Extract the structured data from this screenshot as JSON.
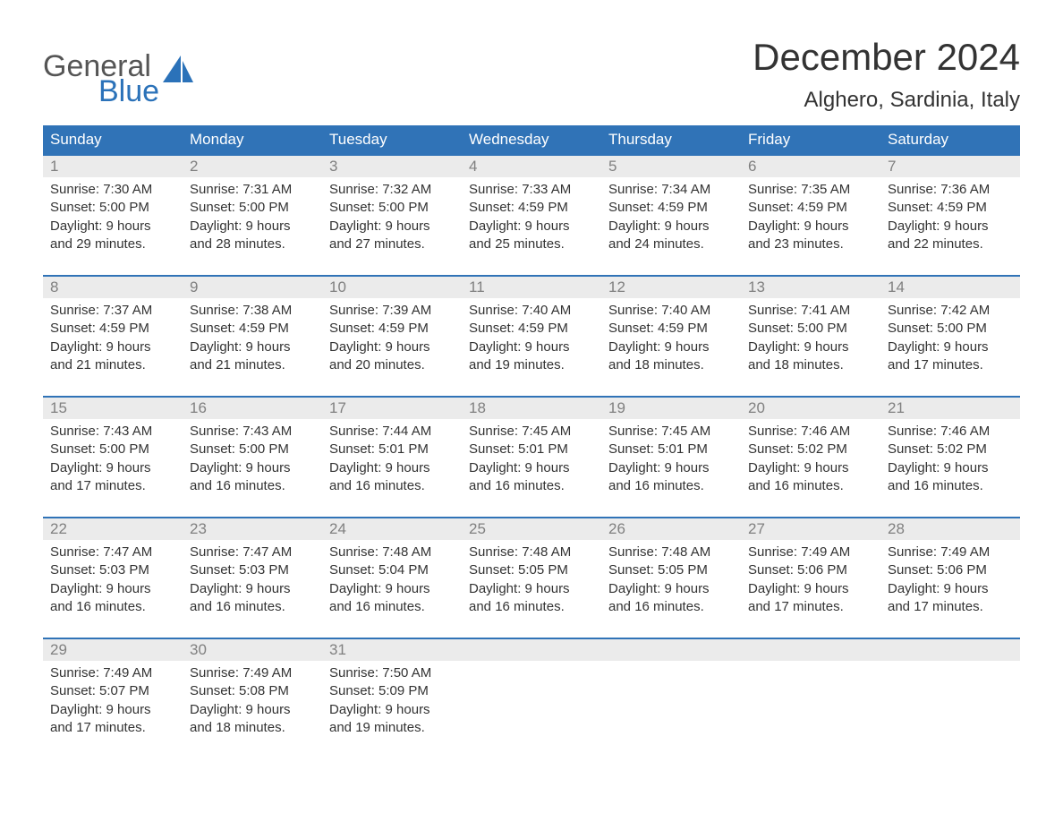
{
  "brand": {
    "text_top": "General",
    "text_bottom": "Blue",
    "top_color": "#555555",
    "bottom_color": "#2b72b9",
    "shape_color": "#2b72b9"
  },
  "title": {
    "month": "December 2024",
    "location": "Alghero, Sardinia, Italy"
  },
  "colors": {
    "header_bg": "#3073b7",
    "header_text": "#ffffff",
    "daynum_bg": "#ebebeb",
    "daynum_text": "#808080",
    "body_text": "#333333",
    "week_border": "#3073b7",
    "page_bg": "#ffffff"
  },
  "typography": {
    "month_fontsize": 42,
    "location_fontsize": 24,
    "header_fontsize": 17,
    "daynum_fontsize": 17,
    "cell_fontsize": 15
  },
  "day_headers": [
    "Sunday",
    "Monday",
    "Tuesday",
    "Wednesday",
    "Thursday",
    "Friday",
    "Saturday"
  ],
  "weeks": [
    [
      {
        "num": "1",
        "sunrise": "Sunrise: 7:30 AM",
        "sunset": "Sunset: 5:00 PM",
        "dl1": "Daylight: 9 hours",
        "dl2": "and 29 minutes."
      },
      {
        "num": "2",
        "sunrise": "Sunrise: 7:31 AM",
        "sunset": "Sunset: 5:00 PM",
        "dl1": "Daylight: 9 hours",
        "dl2": "and 28 minutes."
      },
      {
        "num": "3",
        "sunrise": "Sunrise: 7:32 AM",
        "sunset": "Sunset: 5:00 PM",
        "dl1": "Daylight: 9 hours",
        "dl2": "and 27 minutes."
      },
      {
        "num": "4",
        "sunrise": "Sunrise: 7:33 AM",
        "sunset": "Sunset: 4:59 PM",
        "dl1": "Daylight: 9 hours",
        "dl2": "and 25 minutes."
      },
      {
        "num": "5",
        "sunrise": "Sunrise: 7:34 AM",
        "sunset": "Sunset: 4:59 PM",
        "dl1": "Daylight: 9 hours",
        "dl2": "and 24 minutes."
      },
      {
        "num": "6",
        "sunrise": "Sunrise: 7:35 AM",
        "sunset": "Sunset: 4:59 PM",
        "dl1": "Daylight: 9 hours",
        "dl2": "and 23 minutes."
      },
      {
        "num": "7",
        "sunrise": "Sunrise: 7:36 AM",
        "sunset": "Sunset: 4:59 PM",
        "dl1": "Daylight: 9 hours",
        "dl2": "and 22 minutes."
      }
    ],
    [
      {
        "num": "8",
        "sunrise": "Sunrise: 7:37 AM",
        "sunset": "Sunset: 4:59 PM",
        "dl1": "Daylight: 9 hours",
        "dl2": "and 21 minutes."
      },
      {
        "num": "9",
        "sunrise": "Sunrise: 7:38 AM",
        "sunset": "Sunset: 4:59 PM",
        "dl1": "Daylight: 9 hours",
        "dl2": "and 21 minutes."
      },
      {
        "num": "10",
        "sunrise": "Sunrise: 7:39 AM",
        "sunset": "Sunset: 4:59 PM",
        "dl1": "Daylight: 9 hours",
        "dl2": "and 20 minutes."
      },
      {
        "num": "11",
        "sunrise": "Sunrise: 7:40 AM",
        "sunset": "Sunset: 4:59 PM",
        "dl1": "Daylight: 9 hours",
        "dl2": "and 19 minutes."
      },
      {
        "num": "12",
        "sunrise": "Sunrise: 7:40 AM",
        "sunset": "Sunset: 4:59 PM",
        "dl1": "Daylight: 9 hours",
        "dl2": "and 18 minutes."
      },
      {
        "num": "13",
        "sunrise": "Sunrise: 7:41 AM",
        "sunset": "Sunset: 5:00 PM",
        "dl1": "Daylight: 9 hours",
        "dl2": "and 18 minutes."
      },
      {
        "num": "14",
        "sunrise": "Sunrise: 7:42 AM",
        "sunset": "Sunset: 5:00 PM",
        "dl1": "Daylight: 9 hours",
        "dl2": "and 17 minutes."
      }
    ],
    [
      {
        "num": "15",
        "sunrise": "Sunrise: 7:43 AM",
        "sunset": "Sunset: 5:00 PM",
        "dl1": "Daylight: 9 hours",
        "dl2": "and 17 minutes."
      },
      {
        "num": "16",
        "sunrise": "Sunrise: 7:43 AM",
        "sunset": "Sunset: 5:00 PM",
        "dl1": "Daylight: 9 hours",
        "dl2": "and 16 minutes."
      },
      {
        "num": "17",
        "sunrise": "Sunrise: 7:44 AM",
        "sunset": "Sunset: 5:01 PM",
        "dl1": "Daylight: 9 hours",
        "dl2": "and 16 minutes."
      },
      {
        "num": "18",
        "sunrise": "Sunrise: 7:45 AM",
        "sunset": "Sunset: 5:01 PM",
        "dl1": "Daylight: 9 hours",
        "dl2": "and 16 minutes."
      },
      {
        "num": "19",
        "sunrise": "Sunrise: 7:45 AM",
        "sunset": "Sunset: 5:01 PM",
        "dl1": "Daylight: 9 hours",
        "dl2": "and 16 minutes."
      },
      {
        "num": "20",
        "sunrise": "Sunrise: 7:46 AM",
        "sunset": "Sunset: 5:02 PM",
        "dl1": "Daylight: 9 hours",
        "dl2": "and 16 minutes."
      },
      {
        "num": "21",
        "sunrise": "Sunrise: 7:46 AM",
        "sunset": "Sunset: 5:02 PM",
        "dl1": "Daylight: 9 hours",
        "dl2": "and 16 minutes."
      }
    ],
    [
      {
        "num": "22",
        "sunrise": "Sunrise: 7:47 AM",
        "sunset": "Sunset: 5:03 PM",
        "dl1": "Daylight: 9 hours",
        "dl2": "and 16 minutes."
      },
      {
        "num": "23",
        "sunrise": "Sunrise: 7:47 AM",
        "sunset": "Sunset: 5:03 PM",
        "dl1": "Daylight: 9 hours",
        "dl2": "and 16 minutes."
      },
      {
        "num": "24",
        "sunrise": "Sunrise: 7:48 AM",
        "sunset": "Sunset: 5:04 PM",
        "dl1": "Daylight: 9 hours",
        "dl2": "and 16 minutes."
      },
      {
        "num": "25",
        "sunrise": "Sunrise: 7:48 AM",
        "sunset": "Sunset: 5:05 PM",
        "dl1": "Daylight: 9 hours",
        "dl2": "and 16 minutes."
      },
      {
        "num": "26",
        "sunrise": "Sunrise: 7:48 AM",
        "sunset": "Sunset: 5:05 PM",
        "dl1": "Daylight: 9 hours",
        "dl2": "and 16 minutes."
      },
      {
        "num": "27",
        "sunrise": "Sunrise: 7:49 AM",
        "sunset": "Sunset: 5:06 PM",
        "dl1": "Daylight: 9 hours",
        "dl2": "and 17 minutes."
      },
      {
        "num": "28",
        "sunrise": "Sunrise: 7:49 AM",
        "sunset": "Sunset: 5:06 PM",
        "dl1": "Daylight: 9 hours",
        "dl2": "and 17 minutes."
      }
    ],
    [
      {
        "num": "29",
        "sunrise": "Sunrise: 7:49 AM",
        "sunset": "Sunset: 5:07 PM",
        "dl1": "Daylight: 9 hours",
        "dl2": "and 17 minutes."
      },
      {
        "num": "30",
        "sunrise": "Sunrise: 7:49 AM",
        "sunset": "Sunset: 5:08 PM",
        "dl1": "Daylight: 9 hours",
        "dl2": "and 18 minutes."
      },
      {
        "num": "31",
        "sunrise": "Sunrise: 7:50 AM",
        "sunset": "Sunset: 5:09 PM",
        "dl1": "Daylight: 9 hours",
        "dl2": "and 19 minutes."
      },
      null,
      null,
      null,
      null
    ]
  ]
}
